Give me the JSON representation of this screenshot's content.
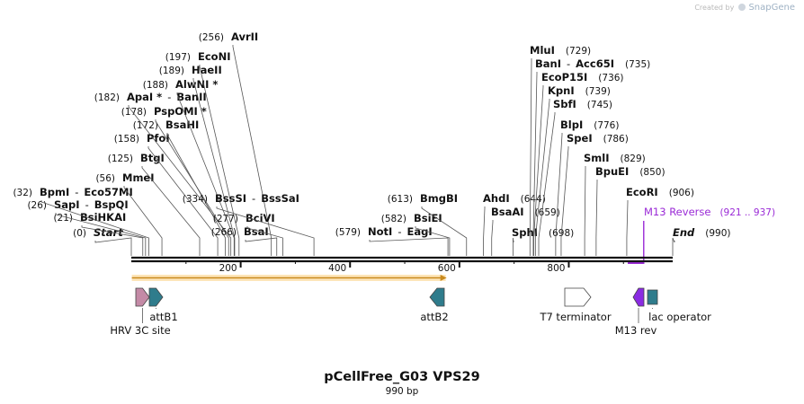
{
  "branding": {
    "created_by": "Created by",
    "product": "SnapGene"
  },
  "map": {
    "title": "pCellFree_G03 VPS29",
    "subtitle": "990 bp",
    "length": 990,
    "ticks": [
      200,
      400,
      600,
      800
    ],
    "colors": {
      "text": "#111111",
      "line": "#555555",
      "primer": "#9a2ad6",
      "orf_fill": "#f7b53a",
      "orf_stroke": "#c98a1e"
    }
  },
  "sites": [
    {
      "name": "Start",
      "pos": 0,
      "num": "(0)",
      "italic": true
    },
    {
      "name": "BsiHKAI",
      "pos": 21,
      "num": "(21)"
    },
    {
      "name": "SapI",
      "pos": 26,
      "num": "(26)",
      "extra": "BspQI"
    },
    {
      "name": "BpmI",
      "pos": 32,
      "num": "(32)",
      "extra": "Eco57MI"
    },
    {
      "name": "MmeI",
      "pos": 56,
      "num": "(56)"
    },
    {
      "name": "BtgI",
      "pos": 125,
      "num": "(125)"
    },
    {
      "name": "PfoI",
      "pos": 158,
      "num": "(158)"
    },
    {
      "name": "BsaHI",
      "pos": 172,
      "num": "(172)"
    },
    {
      "name": "PspOMI",
      "pos": 178,
      "num": "(178)",
      "star": true
    },
    {
      "name": "ApaI",
      "pos": 182,
      "num": "(182)",
      "star": true,
      "extra": "BanII"
    },
    {
      "name": "AlwNI",
      "pos": 188,
      "num": "(188)",
      "star": true
    },
    {
      "name": "HaeII",
      "pos": 189,
      "num": "(189)"
    },
    {
      "name": "EcoNI",
      "pos": 197,
      "num": "(197)"
    },
    {
      "name": "AvrII",
      "pos": 256,
      "num": "(256)"
    },
    {
      "name": "BsaI",
      "pos": 266,
      "num": "(266)"
    },
    {
      "name": "BciVI",
      "pos": 277,
      "num": "(277)"
    },
    {
      "name": "BssSI",
      "pos": 334,
      "num": "(334)",
      "extra": "BssSaI"
    },
    {
      "name": "NotI",
      "pos": 579,
      "num": "(579)",
      "extra": "EagI"
    },
    {
      "name": "BsiEI",
      "pos": 582,
      "num": "(582)"
    },
    {
      "name": "BmgBI",
      "pos": 613,
      "num": "(613)"
    },
    {
      "name": "AhdI",
      "pos": 644,
      "num": "(644)",
      "num_after": true
    },
    {
      "name": "BsaAI",
      "pos": 659,
      "num": "(659)",
      "num_after": true
    },
    {
      "name": "SphI",
      "pos": 698,
      "num": "(698)",
      "num_after": true
    },
    {
      "name": "MluI",
      "pos": 729,
      "num": "(729)",
      "num_after": true
    },
    {
      "name": "BanI",
      "pos": 735,
      "num": "(735)",
      "num_after": true,
      "extra": "Acc65I"
    },
    {
      "name": "EcoP15I",
      "pos": 736,
      "num": "(736)",
      "num_after": true
    },
    {
      "name": "KpnI",
      "pos": 739,
      "num": "(739)",
      "num_after": true
    },
    {
      "name": "SbfI",
      "pos": 745,
      "num": "(745)",
      "num_after": true
    },
    {
      "name": "BlpI",
      "pos": 776,
      "num": "(776)",
      "num_after": true
    },
    {
      "name": "SpeI",
      "pos": 786,
      "num": "(786)",
      "num_after": true
    },
    {
      "name": "SmlI",
      "pos": 829,
      "num": "(829)",
      "num_after": true
    },
    {
      "name": "BpuEI",
      "pos": 850,
      "num": "(850)",
      "num_after": true
    },
    {
      "name": "EcoRI",
      "pos": 906,
      "num": "(906)",
      "num_after": true
    },
    {
      "name": "End",
      "pos": 990,
      "num": "(990)",
      "num_after": true,
      "italic": true
    }
  ],
  "primer": {
    "name": "M13 Reverse",
    "range": "(921 .. 937)",
    "start": 921,
    "end": 937
  },
  "features": [
    {
      "name": "HRV 3C site",
      "start": 12,
      "end": 33,
      "color": "#c48aa6",
      "type": "arrow"
    },
    {
      "name": "attB1",
      "start": 33,
      "end": 58,
      "color": "#2f7c8c",
      "type": "arrow"
    },
    {
      "name": "attB2",
      "start": 550,
      "end": 575,
      "color": "#2f7c8c",
      "type": "rev-arrow"
    },
    {
      "name": "T7 terminator",
      "start": 795,
      "end": 840,
      "color": "#ffffff",
      "type": "arrow"
    },
    {
      "name": "M13 rev",
      "start": 921,
      "end": 937,
      "color": "#8a2be2",
      "type": "rev-arrow"
    },
    {
      "name": "lac operator",
      "start": 945,
      "end": 962,
      "color": "#2f7c8c",
      "type": "box"
    }
  ]
}
